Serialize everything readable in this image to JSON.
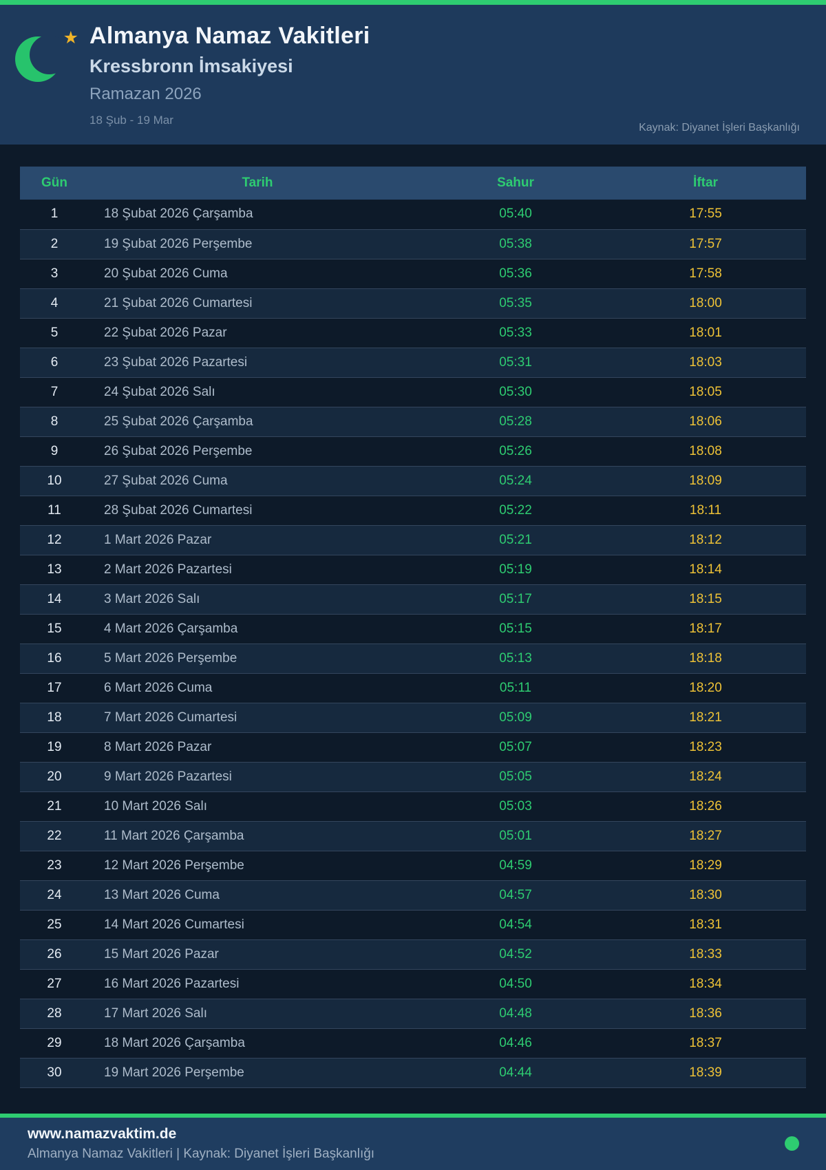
{
  "colors": {
    "accent_green": "#2ecc71",
    "iftar_amber": "#eec236",
    "star_gold": "#f0b429",
    "header_bg": "#1e3a5c",
    "page_bg": "#0d1a29",
    "table_header_bg": "#2a4a6e",
    "footer_bg": "#1f3d60"
  },
  "header": {
    "logo_icon": "crescent-moon-and-star",
    "title": "Almanya Namaz Vakitleri",
    "subtitle": "Kressbronn İmsakiyesi",
    "season": "Ramazan 2026",
    "date_range": "18 Şub - 19 Mar",
    "source": "Kaynak: Diyanet İşleri Başkanlığı"
  },
  "table": {
    "columns": [
      "Gün",
      "Tarih",
      "Sahur",
      "İftar"
    ],
    "rows": [
      {
        "gun": "1",
        "tarih": "18 Şubat 2026 Çarşamba",
        "sahur": "05:40",
        "iftar": "17:55"
      },
      {
        "gun": "2",
        "tarih": "19 Şubat 2026 Perşembe",
        "sahur": "05:38",
        "iftar": "17:57"
      },
      {
        "gun": "3",
        "tarih": "20 Şubat 2026 Cuma",
        "sahur": "05:36",
        "iftar": "17:58"
      },
      {
        "gun": "4",
        "tarih": "21 Şubat 2026 Cumartesi",
        "sahur": "05:35",
        "iftar": "18:00"
      },
      {
        "gun": "5",
        "tarih": "22 Şubat 2026 Pazar",
        "sahur": "05:33",
        "iftar": "18:01"
      },
      {
        "gun": "6",
        "tarih": "23 Şubat 2026 Pazartesi",
        "sahur": "05:31",
        "iftar": "18:03"
      },
      {
        "gun": "7",
        "tarih": "24 Şubat 2026 Salı",
        "sahur": "05:30",
        "iftar": "18:05"
      },
      {
        "gun": "8",
        "tarih": "25 Şubat 2026 Çarşamba",
        "sahur": "05:28",
        "iftar": "18:06"
      },
      {
        "gun": "9",
        "tarih": "26 Şubat 2026 Perşembe",
        "sahur": "05:26",
        "iftar": "18:08"
      },
      {
        "gun": "10",
        "tarih": "27 Şubat 2026 Cuma",
        "sahur": "05:24",
        "iftar": "18:09"
      },
      {
        "gun": "11",
        "tarih": "28 Şubat 2026 Cumartesi",
        "sahur": "05:22",
        "iftar": "18:11"
      },
      {
        "gun": "12",
        "tarih": "1 Mart 2026 Pazar",
        "sahur": "05:21",
        "iftar": "18:12"
      },
      {
        "gun": "13",
        "tarih": "2 Mart 2026 Pazartesi",
        "sahur": "05:19",
        "iftar": "18:14"
      },
      {
        "gun": "14",
        "tarih": "3 Mart 2026 Salı",
        "sahur": "05:17",
        "iftar": "18:15"
      },
      {
        "gun": "15",
        "tarih": "4 Mart 2026 Çarşamba",
        "sahur": "05:15",
        "iftar": "18:17"
      },
      {
        "gun": "16",
        "tarih": "5 Mart 2026 Perşembe",
        "sahur": "05:13",
        "iftar": "18:18"
      },
      {
        "gun": "17",
        "tarih": "6 Mart 2026 Cuma",
        "sahur": "05:11",
        "iftar": "18:20"
      },
      {
        "gun": "18",
        "tarih": "7 Mart 2026 Cumartesi",
        "sahur": "05:09",
        "iftar": "18:21"
      },
      {
        "gun": "19",
        "tarih": "8 Mart 2026 Pazar",
        "sahur": "05:07",
        "iftar": "18:23"
      },
      {
        "gun": "20",
        "tarih": "9 Mart 2026 Pazartesi",
        "sahur": "05:05",
        "iftar": "18:24"
      },
      {
        "gun": "21",
        "tarih": "10 Mart 2026 Salı",
        "sahur": "05:03",
        "iftar": "18:26"
      },
      {
        "gun": "22",
        "tarih": "11 Mart 2026 Çarşamba",
        "sahur": "05:01",
        "iftar": "18:27"
      },
      {
        "gun": "23",
        "tarih": "12 Mart 2026 Perşembe",
        "sahur": "04:59",
        "iftar": "18:29"
      },
      {
        "gun": "24",
        "tarih": "13 Mart 2026 Cuma",
        "sahur": "04:57",
        "iftar": "18:30"
      },
      {
        "gun": "25",
        "tarih": "14 Mart 2026 Cumartesi",
        "sahur": "04:54",
        "iftar": "18:31"
      },
      {
        "gun": "26",
        "tarih": "15 Mart 2026 Pazar",
        "sahur": "04:52",
        "iftar": "18:33"
      },
      {
        "gun": "27",
        "tarih": "16 Mart 2026 Pazartesi",
        "sahur": "04:50",
        "iftar": "18:34"
      },
      {
        "gun": "28",
        "tarih": "17 Mart 2026 Salı",
        "sahur": "04:48",
        "iftar": "18:36"
      },
      {
        "gun": "29",
        "tarih": "18 Mart 2026 Çarşamba",
        "sahur": "04:46",
        "iftar": "18:37"
      },
      {
        "gun": "30",
        "tarih": "19 Mart 2026 Perşembe",
        "sahur": "04:44",
        "iftar": "18:39"
      }
    ]
  },
  "footer": {
    "website": "www.namazvaktim.de",
    "tagline": "Almanya Namaz Vakitleri | Kaynak: Diyanet İşleri Başkanlığı",
    "status_dot_color": "#2ecc71"
  }
}
